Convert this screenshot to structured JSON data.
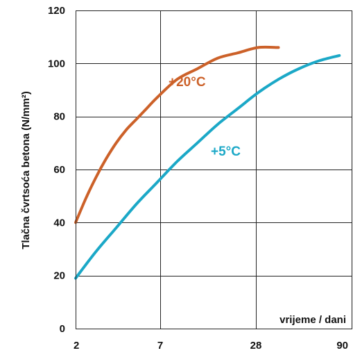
{
  "chart_data": {
    "type": "line",
    "title": "",
    "xlabel": "vrijeme / dani",
    "ylabel": "Tlačna čvrtsoća betona (N/mm²)",
    "x_ticks": [
      "2",
      "7",
      "28",
      "90"
    ],
    "y_ticks": [
      "0",
      "20",
      "40",
      "60",
      "80",
      "100",
      "120"
    ],
    "ylim": [
      0,
      120
    ],
    "grid": true,
    "series": [
      {
        "name": "+20°C",
        "color": "#cc6129",
        "points": [
          {
            "x": 0,
            "y": 40
          },
          {
            "x": 0.25,
            "y": 49
          },
          {
            "x": 0.5,
            "y": 57
          },
          {
            "x": 0.75,
            "y": 64
          },
          {
            "x": 1,
            "y": 70
          },
          {
            "x": 1.25,
            "y": 75
          },
          {
            "x": 1.5,
            "y": 79
          },
          {
            "x": 1.75,
            "y": 83
          },
          {
            "x": 2,
            "y": 87
          },
          {
            "x": 2.5,
            "y": 94
          },
          {
            "x": 3,
            "y": 98
          },
          {
            "x": 3.5,
            "y": 102
          },
          {
            "x": 4,
            "y": 104
          },
          {
            "x": 4.5,
            "y": 106
          },
          {
            "x": 5,
            "y": 106
          }
        ]
      },
      {
        "name": "+5°C",
        "color": "#1ba8c7",
        "points": [
          {
            "x": 0,
            "y": 19
          },
          {
            "x": 0.5,
            "y": 29
          },
          {
            "x": 1,
            "y": 38
          },
          {
            "x": 1.5,
            "y": 47
          },
          {
            "x": 2,
            "y": 55
          },
          {
            "x": 2.5,
            "y": 63
          },
          {
            "x": 3,
            "y": 70
          },
          {
            "x": 3.5,
            "y": 77
          },
          {
            "x": 4,
            "y": 83
          },
          {
            "x": 4.5,
            "y": 89
          },
          {
            "x": 5,
            "y": 94
          },
          {
            "x": 5.5,
            "y": 98
          },
          {
            "x": 6,
            "y": 101
          },
          {
            "x": 6.5,
            "y": 103
          }
        ]
      }
    ]
  }
}
